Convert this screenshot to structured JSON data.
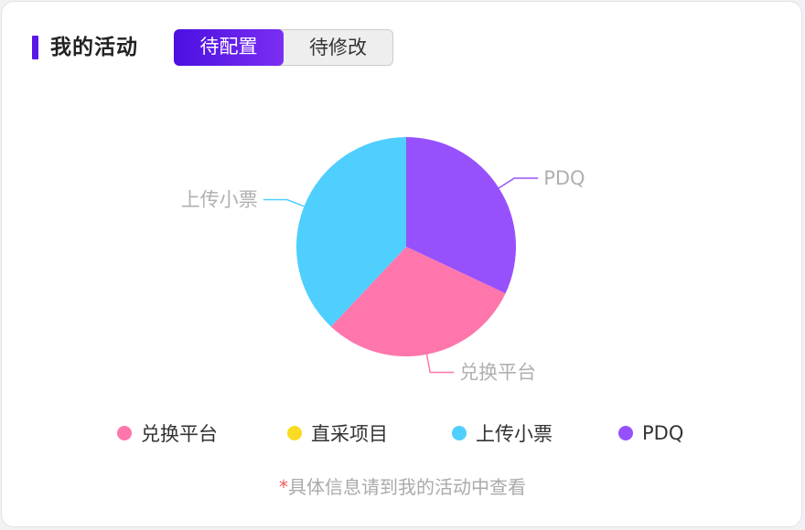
{
  "header": {
    "title": "我的活动",
    "accent": "#5a18e6"
  },
  "tabs": [
    {
      "label": "待配置",
      "active": true
    },
    {
      "label": "待修改",
      "active": false
    }
  ],
  "chart_data": {
    "type": "pie",
    "title": "",
    "slices": [
      {
        "name": "PDQ",
        "value": 32,
        "color": "#9651fd"
      },
      {
        "name": "兑换平台",
        "value": 30,
        "color": "#ff76ad"
      },
      {
        "name": "直采项目",
        "value": 0,
        "color": "#fadb23"
      },
      {
        "name": "上传小票",
        "value": 38,
        "color": "#4fcffd"
      }
    ],
    "legend": {
      "placement": "bottom",
      "entries": [
        {
          "name": "兑换平台",
          "color": "#ff76ad"
        },
        {
          "name": "直采项目",
          "color": "#fadb23"
        },
        {
          "name": "上传小票",
          "color": "#4fcffd"
        },
        {
          "name": "PDQ",
          "color": "#9651fd"
        }
      ]
    }
  },
  "footnote": {
    "star": "*",
    "text": "具体信息请到我的活动中查看"
  }
}
